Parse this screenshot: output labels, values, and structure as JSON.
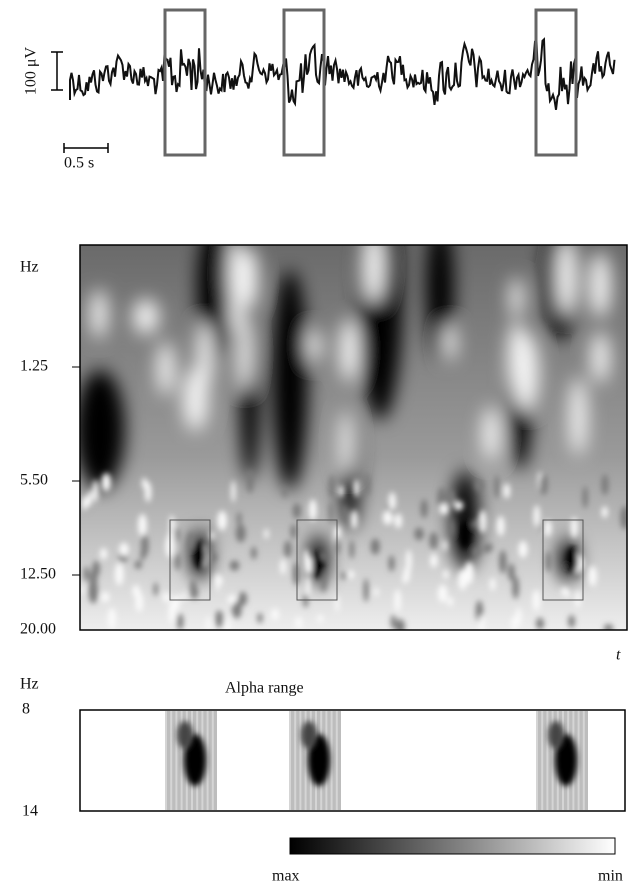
{
  "trace": {
    "amplitude_scale": "100 μV",
    "time_scale": "0.5 s"
  },
  "scalogram": {
    "y_axis_title": "Hz",
    "y_labels": [
      "1.25",
      "5.50",
      "12.50",
      "20.00"
    ],
    "x_axis_title": "t"
  },
  "alpha_panel": {
    "y_axis_title": "Hz",
    "title": "Alpha range",
    "y_labels": [
      "8",
      "14"
    ]
  },
  "colorbar": {
    "left_label": "max",
    "right_label": "min"
  }
}
